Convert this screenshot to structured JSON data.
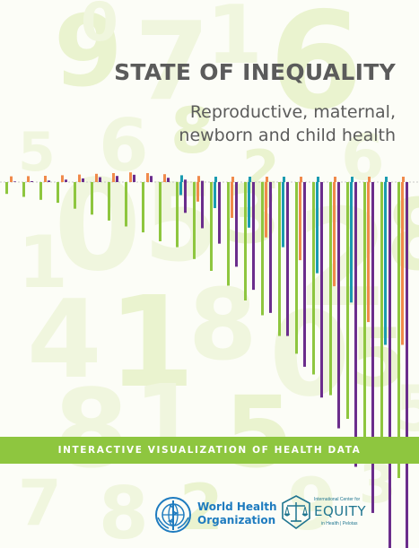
{
  "cover": {
    "title": "STATE OF INEQUALITY",
    "subtitle_line1": "Reproductive, maternal,",
    "subtitle_line2": "newborn and child health",
    "banner": "INTERACTIVE VISUALIZATION OF HEALTH DATA"
  },
  "logos": {
    "who_line1": "World Health",
    "who_line2": "Organization",
    "equity_small": "International Center for",
    "equity_word": "EQUITY",
    "equity_tag": "in Health | Pelotas"
  },
  "icons": {
    "who": "who-emblem-icon",
    "equity": "equity-scale-icon"
  },
  "colors": {
    "green": "#8ec63f",
    "purple": "#6b2d8c",
    "orange": "#f08a4b",
    "teal": "#1a9bb0",
    "title_gray": "#5b5b5b",
    "who_blue": "#1e7bbf",
    "equity_teal": "#1f7590"
  },
  "background_digits": [
    "9",
    "7",
    "1",
    "6",
    "5",
    "6",
    "8",
    "0",
    "5",
    "3",
    "2",
    "4",
    "1",
    "8",
    "0",
    "5",
    "8",
    "1",
    "5",
    "7",
    "8",
    "2",
    "9",
    "3",
    "8",
    "6",
    "0",
    "2",
    "1",
    "5"
  ],
  "decor_groups": [
    {
      "green": 0.04,
      "up": 0.02,
      "down": 0.0,
      "color2": "orange"
    },
    {
      "green": 0.05,
      "up": 0.03,
      "down": 0.0,
      "color2": "orange"
    },
    {
      "green": 0.06,
      "up": 0.05,
      "down": 0.0,
      "color2": "orange"
    },
    {
      "green": 0.07,
      "up": 0.08,
      "down": 0.0,
      "color2": "orange"
    },
    {
      "green": 0.09,
      "up": 0.12,
      "down": 0.0,
      "color2": "orange"
    },
    {
      "green": 0.11,
      "up": 0.16,
      "down": 0.0,
      "color2": "orange"
    },
    {
      "green": 0.13,
      "up": 0.2,
      "down": 0.0,
      "color2": "orange"
    },
    {
      "green": 0.15,
      "up": 0.24,
      "down": 0.0,
      "color2": "orange"
    },
    {
      "green": 0.17,
      "up": 0.2,
      "down": 0.0,
      "color2": "orange"
    },
    {
      "green": 0.2,
      "up": 0.14,
      "down": 0.0,
      "color2": "orange"
    },
    {
      "green": 0.22,
      "up": 0.08,
      "down": 0.08,
      "color2": "teal"
    },
    {
      "green": 0.26,
      "up": 0.04,
      "down": 0.12,
      "color2": "orange"
    },
    {
      "green": 0.3,
      "up": 0.0,
      "down": 0.16,
      "color2": "teal"
    },
    {
      "green": 0.35,
      "up": 0.0,
      "down": 0.22,
      "color2": "orange"
    },
    {
      "green": 0.4,
      "up": 0.0,
      "down": 0.28,
      "color2": "teal"
    },
    {
      "green": 0.45,
      "up": 0.0,
      "down": 0.34,
      "color2": "orange"
    },
    {
      "green": 0.52,
      "up": 0.0,
      "down": 0.4,
      "color2": "teal"
    },
    {
      "green": 0.58,
      "up": 0.0,
      "down": 0.48,
      "color2": "orange"
    },
    {
      "green": 0.65,
      "up": 0.0,
      "down": 0.56,
      "color2": "teal"
    },
    {
      "green": 0.72,
      "up": 0.0,
      "down": 0.64,
      "color2": "orange"
    },
    {
      "green": 0.8,
      "up": 0.0,
      "down": 0.74,
      "color2": "teal"
    },
    {
      "green": 0.88,
      "up": 0.0,
      "down": 0.86,
      "color2": "orange"
    },
    {
      "green": 0.95,
      "up": 0.0,
      "down": 1.0,
      "color2": "teal"
    },
    {
      "green": 1.0,
      "up": 0.0,
      "down": 1.0,
      "color2": "orange"
    }
  ]
}
